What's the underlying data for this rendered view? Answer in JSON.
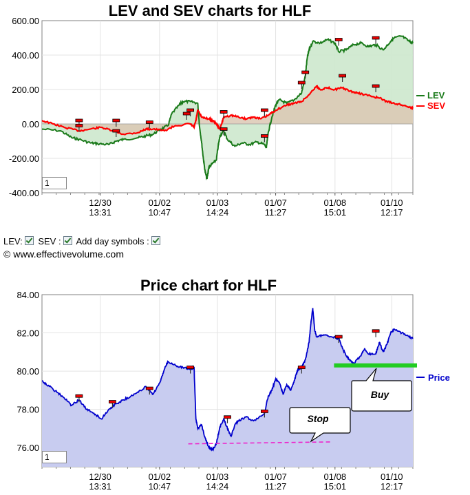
{
  "copyright": "© www.effectivevolume.com",
  "controls": {
    "lev_label": "LEV:",
    "sev_label": "SEV :",
    "day_symbols_label": "Add day symbols :"
  },
  "chart_data": [
    {
      "type": "line",
      "title": "LEV and SEV charts for HLF",
      "period_value": "1",
      "x_tick_labels": [
        [
          "12/30",
          "13:31"
        ],
        [
          "01/02",
          "10:47"
        ],
        [
          "01/03",
          "14:24"
        ],
        [
          "01/07",
          "11:27"
        ],
        [
          "01/08",
          "15:01"
        ],
        [
          "01/10",
          "12:17"
        ]
      ],
      "ylim": [
        -400,
        600
      ],
      "y_ticks": [
        "600.00",
        "400.00",
        "200.00",
        "0.00",
        "-200.00",
        "-400.00"
      ],
      "grid": true,
      "legend_placement": "right",
      "colors": {
        "LEV": "#1a7a1a",
        "SEV": "#ff0000",
        "lev_fill": "#cde8cd",
        "sev_fill": "#dcc8b4"
      },
      "series": [
        {
          "name": "LEV",
          "points": [
            [
              0,
              -30
            ],
            [
              0.05,
              -40
            ],
            [
              0.08,
              -80
            ],
            [
              0.1,
              -90
            ],
            [
              0.13,
              -110
            ],
            [
              0.15,
              -115
            ],
            [
              0.18,
              -120
            ],
            [
              0.2,
              -100
            ],
            [
              0.22,
              -90
            ],
            [
              0.26,
              -80
            ],
            [
              0.28,
              -70
            ],
            [
              0.3,
              -60
            ],
            [
              0.32,
              -30
            ],
            [
              0.34,
              -10
            ],
            [
              0.35,
              60
            ],
            [
              0.37,
              110
            ],
            [
              0.38,
              130
            ],
            [
              0.4,
              130
            ],
            [
              0.42,
              120
            ],
            [
              0.425,
              -20
            ],
            [
              0.43,
              -100
            ],
            [
              0.435,
              -200
            ],
            [
              0.44,
              -280
            ],
            [
              0.445,
              -320
            ],
            [
              0.45,
              -250
            ],
            [
              0.46,
              -230
            ],
            [
              0.47,
              -210
            ],
            [
              0.475,
              -130
            ],
            [
              0.48,
              -70
            ],
            [
              0.49,
              -40
            ],
            [
              0.5,
              -90
            ],
            [
              0.52,
              -130
            ],
            [
              0.54,
              -110
            ],
            [
              0.56,
              -120
            ],
            [
              0.58,
              -105
            ],
            [
              0.6,
              -120
            ],
            [
              0.605,
              -140
            ],
            [
              0.61,
              -50
            ],
            [
              0.62,
              40
            ],
            [
              0.63,
              110
            ],
            [
              0.64,
              140
            ],
            [
              0.66,
              120
            ],
            [
              0.68,
              140
            ],
            [
              0.7,
              180
            ],
            [
              0.71,
              280
            ],
            [
              0.715,
              380
            ],
            [
              0.72,
              430
            ],
            [
              0.73,
              480
            ],
            [
              0.75,
              470
            ],
            [
              0.77,
              490
            ],
            [
              0.79,
              470
            ],
            [
              0.8,
              420
            ],
            [
              0.82,
              430
            ],
            [
              0.84,
              460
            ],
            [
              0.86,
              470
            ],
            [
              0.88,
              450
            ],
            [
              0.9,
              460
            ],
            [
              0.92,
              430
            ],
            [
              0.94,
              480
            ],
            [
              0.95,
              500
            ],
            [
              0.97,
              510
            ],
            [
              0.99,
              480
            ],
            [
              1.0,
              470
            ]
          ]
        },
        {
          "name": "SEV",
          "points": [
            [
              0,
              20
            ],
            [
              0.03,
              0
            ],
            [
              0.06,
              -20
            ],
            [
              0.1,
              -40
            ],
            [
              0.13,
              -30
            ],
            [
              0.16,
              -20
            ],
            [
              0.19,
              -40
            ],
            [
              0.22,
              -60
            ],
            [
              0.26,
              -50
            ],
            [
              0.28,
              -30
            ],
            [
              0.3,
              -30
            ],
            [
              0.33,
              -40
            ],
            [
              0.36,
              -10
            ],
            [
              0.4,
              0
            ],
            [
              0.41,
              -20
            ],
            [
              0.415,
              20
            ],
            [
              0.42,
              80
            ],
            [
              0.43,
              40
            ],
            [
              0.45,
              30
            ],
            [
              0.46,
              20
            ],
            [
              0.47,
              0
            ],
            [
              0.48,
              -30
            ],
            [
              0.49,
              40
            ],
            [
              0.51,
              50
            ],
            [
              0.53,
              40
            ],
            [
              0.55,
              30
            ],
            [
              0.57,
              40
            ],
            [
              0.59,
              30
            ],
            [
              0.61,
              50
            ],
            [
              0.63,
              80
            ],
            [
              0.66,
              110
            ],
            [
              0.68,
              120
            ],
            [
              0.7,
              130
            ],
            [
              0.72,
              170
            ],
            [
              0.74,
              220
            ],
            [
              0.75,
              200
            ],
            [
              0.77,
              210
            ],
            [
              0.79,
              200
            ],
            [
              0.81,
              210
            ],
            [
              0.83,
              190
            ],
            [
              0.85,
              180
            ],
            [
              0.87,
              170
            ],
            [
              0.89,
              160
            ],
            [
              0.91,
              150
            ],
            [
              0.93,
              130
            ],
            [
              0.95,
              120
            ],
            [
              0.97,
              110
            ],
            [
              0.99,
              100
            ],
            [
              1.0,
              90
            ]
          ]
        }
      ],
      "day_markers": [
        [
          0.1,
          20
        ],
        [
          0.1,
          -10
        ],
        [
          0.2,
          20
        ],
        [
          0.2,
          -40
        ],
        [
          0.29,
          10
        ],
        [
          0.39,
          60
        ],
        [
          0.4,
          80
        ],
        [
          0.49,
          70
        ],
        [
          0.49,
          -30
        ],
        [
          0.6,
          80
        ],
        [
          0.6,
          -70
        ],
        [
          0.7,
          240
        ],
        [
          0.71,
          300
        ],
        [
          0.8,
          490
        ],
        [
          0.81,
          280
        ],
        [
          0.9,
          500
        ],
        [
          0.9,
          220
        ]
      ]
    },
    {
      "type": "area",
      "title": "Price chart for HLF",
      "period_value": "1",
      "x_tick_labels": [
        [
          "12/30",
          "13:31"
        ],
        [
          "01/02",
          "10:47"
        ],
        [
          "01/03",
          "14:24"
        ],
        [
          "01/07",
          "11:27"
        ],
        [
          "01/08",
          "15:01"
        ],
        [
          "01/10",
          "12:17"
        ]
      ],
      "ylim": [
        75,
        84
      ],
      "y_ticks": [
        "84.00",
        "82.00",
        "80.00",
        "78.00",
        "76.00"
      ],
      "grid": true,
      "legend_placement": "right",
      "colors": {
        "Price": "#0000cc",
        "fill": "#c8ccf0",
        "buy_line": "#22cc22",
        "stop_line": "#ee22cc"
      },
      "series": [
        {
          "name": "Price",
          "points": [
            [
              0,
              79.5
            ],
            [
              0.02,
              79.2
            ],
            [
              0.04,
              78.9
            ],
            [
              0.06,
              78.6
            ],
            [
              0.08,
              78.2
            ],
            [
              0.1,
              78.5
            ],
            [
              0.12,
              78.0
            ],
            [
              0.14,
              77.8
            ],
            [
              0.16,
              77.5
            ],
            [
              0.18,
              78.0
            ],
            [
              0.2,
              78.3
            ],
            [
              0.22,
              78.5
            ],
            [
              0.24,
              78.7
            ],
            [
              0.26,
              78.9
            ],
            [
              0.28,
              79.2
            ],
            [
              0.3,
              78.8
            ],
            [
              0.32,
              79.5
            ],
            [
              0.33,
              80.1
            ],
            [
              0.34,
              80.5
            ],
            [
              0.36,
              80.3
            ],
            [
              0.38,
              80.2
            ],
            [
              0.4,
              80.1
            ],
            [
              0.41,
              80.2
            ],
            [
              0.415,
              77.5
            ],
            [
              0.42,
              77.0
            ],
            [
              0.43,
              77.2
            ],
            [
              0.44,
              76.5
            ],
            [
              0.45,
              76.0
            ],
            [
              0.46,
              75.9
            ],
            [
              0.47,
              76.2
            ],
            [
              0.48,
              77.1
            ],
            [
              0.49,
              77.5
            ],
            [
              0.5,
              77.0
            ],
            [
              0.51,
              76.6
            ],
            [
              0.52,
              77.2
            ],
            [
              0.53,
              77.4
            ],
            [
              0.55,
              77.6
            ],
            [
              0.57,
              77.4
            ],
            [
              0.6,
              77.8
            ],
            [
              0.61,
              78.7
            ],
            [
              0.62,
              79.0
            ],
            [
              0.63,
              79.6
            ],
            [
              0.64,
              79.4
            ],
            [
              0.65,
              78.8
            ],
            [
              0.66,
              79.3
            ],
            [
              0.67,
              79.0
            ],
            [
              0.68,
              79.5
            ],
            [
              0.69,
              80.1
            ],
            [
              0.7,
              80.2
            ],
            [
              0.71,
              80.6
            ],
            [
              0.72,
              81.5
            ],
            [
              0.725,
              82.5
            ],
            [
              0.73,
              83.3
            ],
            [
              0.735,
              82.2
            ],
            [
              0.74,
              81.8
            ],
            [
              0.76,
              81.9
            ],
            [
              0.78,
              81.8
            ],
            [
              0.8,
              81.7
            ],
            [
              0.81,
              81.2
            ],
            [
              0.82,
              80.8
            ],
            [
              0.83,
              80.6
            ],
            [
              0.84,
              80.4
            ],
            [
              0.86,
              80.8
            ],
            [
              0.87,
              81.2
            ],
            [
              0.88,
              80.9
            ],
            [
              0.9,
              80.9
            ],
            [
              0.91,
              81.5
            ],
            [
              0.92,
              81.0
            ],
            [
              0.93,
              81.4
            ],
            [
              0.94,
              82.0
            ],
            [
              0.95,
              82.2
            ],
            [
              0.97,
              82.0
            ],
            [
              0.99,
              81.8
            ],
            [
              1.0,
              81.7
            ]
          ]
        }
      ],
      "day_markers": [
        [
          0.1,
          78.7
        ],
        [
          0.19,
          78.4
        ],
        [
          0.29,
          79.1
        ],
        [
          0.4,
          80.2
        ],
        [
          0.5,
          77.6
        ],
        [
          0.6,
          77.9
        ],
        [
          0.7,
          80.2
        ],
        [
          0.8,
          81.8
        ],
        [
          0.9,
          82.1
        ]
      ],
      "buy_line": {
        "x_from": 0.78,
        "x_to": 1.0,
        "y": 80.3
      },
      "stop_line": {
        "x_from": 0.4,
        "x_to": 0.78,
        "y_from": 76.2,
        "y_to": 76.3
      },
      "annotations": {
        "buy": "Buy",
        "stop": "Stop"
      }
    }
  ]
}
